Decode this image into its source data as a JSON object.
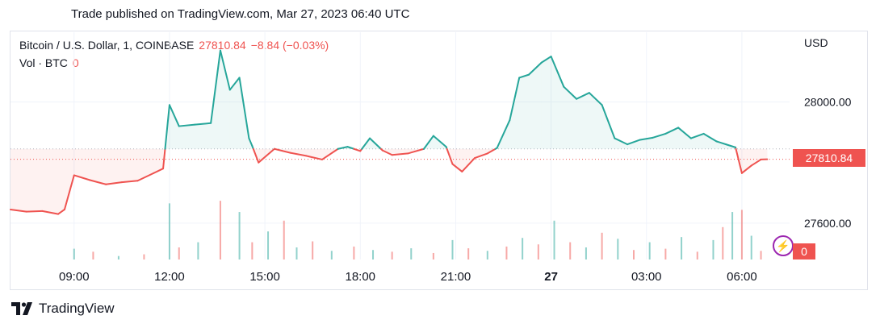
{
  "header": {
    "published": "Trade published on TradingView.com, Mar 27, 2023 06:40 UTC"
  },
  "legend": {
    "symbol": "Bitcoin / U.S. Dollar, 1, COINBASE",
    "price": "27810.84",
    "change": "−8.84 (−0.03%)",
    "volume_label": "Vol · BTC",
    "volume_value": "0"
  },
  "axis": {
    "currency": "USD"
  },
  "price_label": "27810.84",
  "volume_badge": "0",
  "brand": {
    "name": "TradingView"
  },
  "colors": {
    "up": "#26a69a",
    "down": "#ef5350",
    "volume_icon": "#9c27b0"
  },
  "chart_data": {
    "type": "line",
    "title": "Bitcoin / U.S. Dollar, 1, COINBASE",
    "baseline": 27845,
    "y_ticks": [
      "28000.00",
      "27600.00"
    ],
    "y_tick_values": [
      28000,
      27600
    ],
    "ylim": [
      27480,
      28230
    ],
    "x_ticks": [
      "09:00",
      "12:00",
      "15:00",
      "18:00",
      "21:00",
      "27",
      "03:00",
      "06:00"
    ],
    "x_tick_hours": [
      9,
      12,
      15,
      18,
      21,
      24,
      27,
      30
    ],
    "xlim": [
      7,
      31.5
    ],
    "series": [
      {
        "x": [
          7,
          7.5,
          8,
          8.5,
          8.7,
          9,
          9.5,
          10,
          10.5,
          11,
          11.5,
          11.8,
          12,
          12.3,
          12.8,
          13.3,
          13.6,
          13.9,
          14.2,
          14.5,
          14.6,
          14.8,
          15.3,
          15.8,
          16.3,
          16.8,
          17.3,
          17.6,
          18,
          18.3,
          18.7,
          19,
          19.5,
          20,
          20.3,
          20.7,
          20.9,
          21.2,
          21.6,
          22,
          22.3,
          22.7,
          23,
          23.3,
          23.7,
          24,
          24.4,
          24.8,
          25.2,
          25.6,
          26,
          26.4,
          26.8,
          27.2,
          27.6,
          28,
          28.4,
          28.8,
          29.2,
          29.5,
          29.8,
          30,
          30.3,
          30.6,
          30.8
        ],
        "y": [
          27645,
          27638,
          27640,
          27630,
          27645,
          27758,
          27742,
          27728,
          27735,
          27740,
          27765,
          27780,
          27990,
          27920,
          27925,
          27930,
          28170,
          28040,
          28080,
          27880,
          27855,
          27800,
          27845,
          27832,
          27822,
          27810,
          27845,
          27852,
          27838,
          27880,
          27840,
          27825,
          27830,
          27845,
          27888,
          27852,
          27795,
          27770,
          27815,
          27830,
          27848,
          27940,
          28080,
          28090,
          28130,
          28150,
          28050,
          28010,
          28030,
          27990,
          27880,
          27860,
          27875,
          27882,
          27895,
          27915,
          27880,
          27895,
          27870,
          27860,
          27850,
          27765,
          27790,
          27810,
          27810.84
        ]
      }
    ],
    "volume": {
      "ylim": [
        0,
        140
      ],
      "x": [
        9,
        9.6,
        10.4,
        11.2,
        12,
        12.3,
        12.9,
        13.6,
        14.2,
        14.6,
        15.1,
        15.6,
        16,
        16.5,
        17.1,
        17.8,
        18.4,
        19,
        19.6,
        20.3,
        20.9,
        21.4,
        22,
        22.6,
        23.1,
        23.6,
        24.1,
        24.6,
        25.1,
        25.6,
        26.1,
        26.6,
        27.1,
        27.6,
        28.1,
        28.6,
        29.1,
        29.4,
        29.7,
        30,
        30.3,
        30.6
      ],
      "values": [
        25,
        18,
        8,
        12,
        130,
        28,
        40,
        136,
        110,
        40,
        65,
        90,
        28,
        42,
        20,
        30,
        22,
        18,
        26,
        15,
        45,
        26,
        20,
        30,
        50,
        35,
        90,
        40,
        28,
        62,
        48,
        22,
        40,
        25,
        52,
        18,
        45,
        75,
        110,
        115,
        55,
        20
      ]
    }
  }
}
